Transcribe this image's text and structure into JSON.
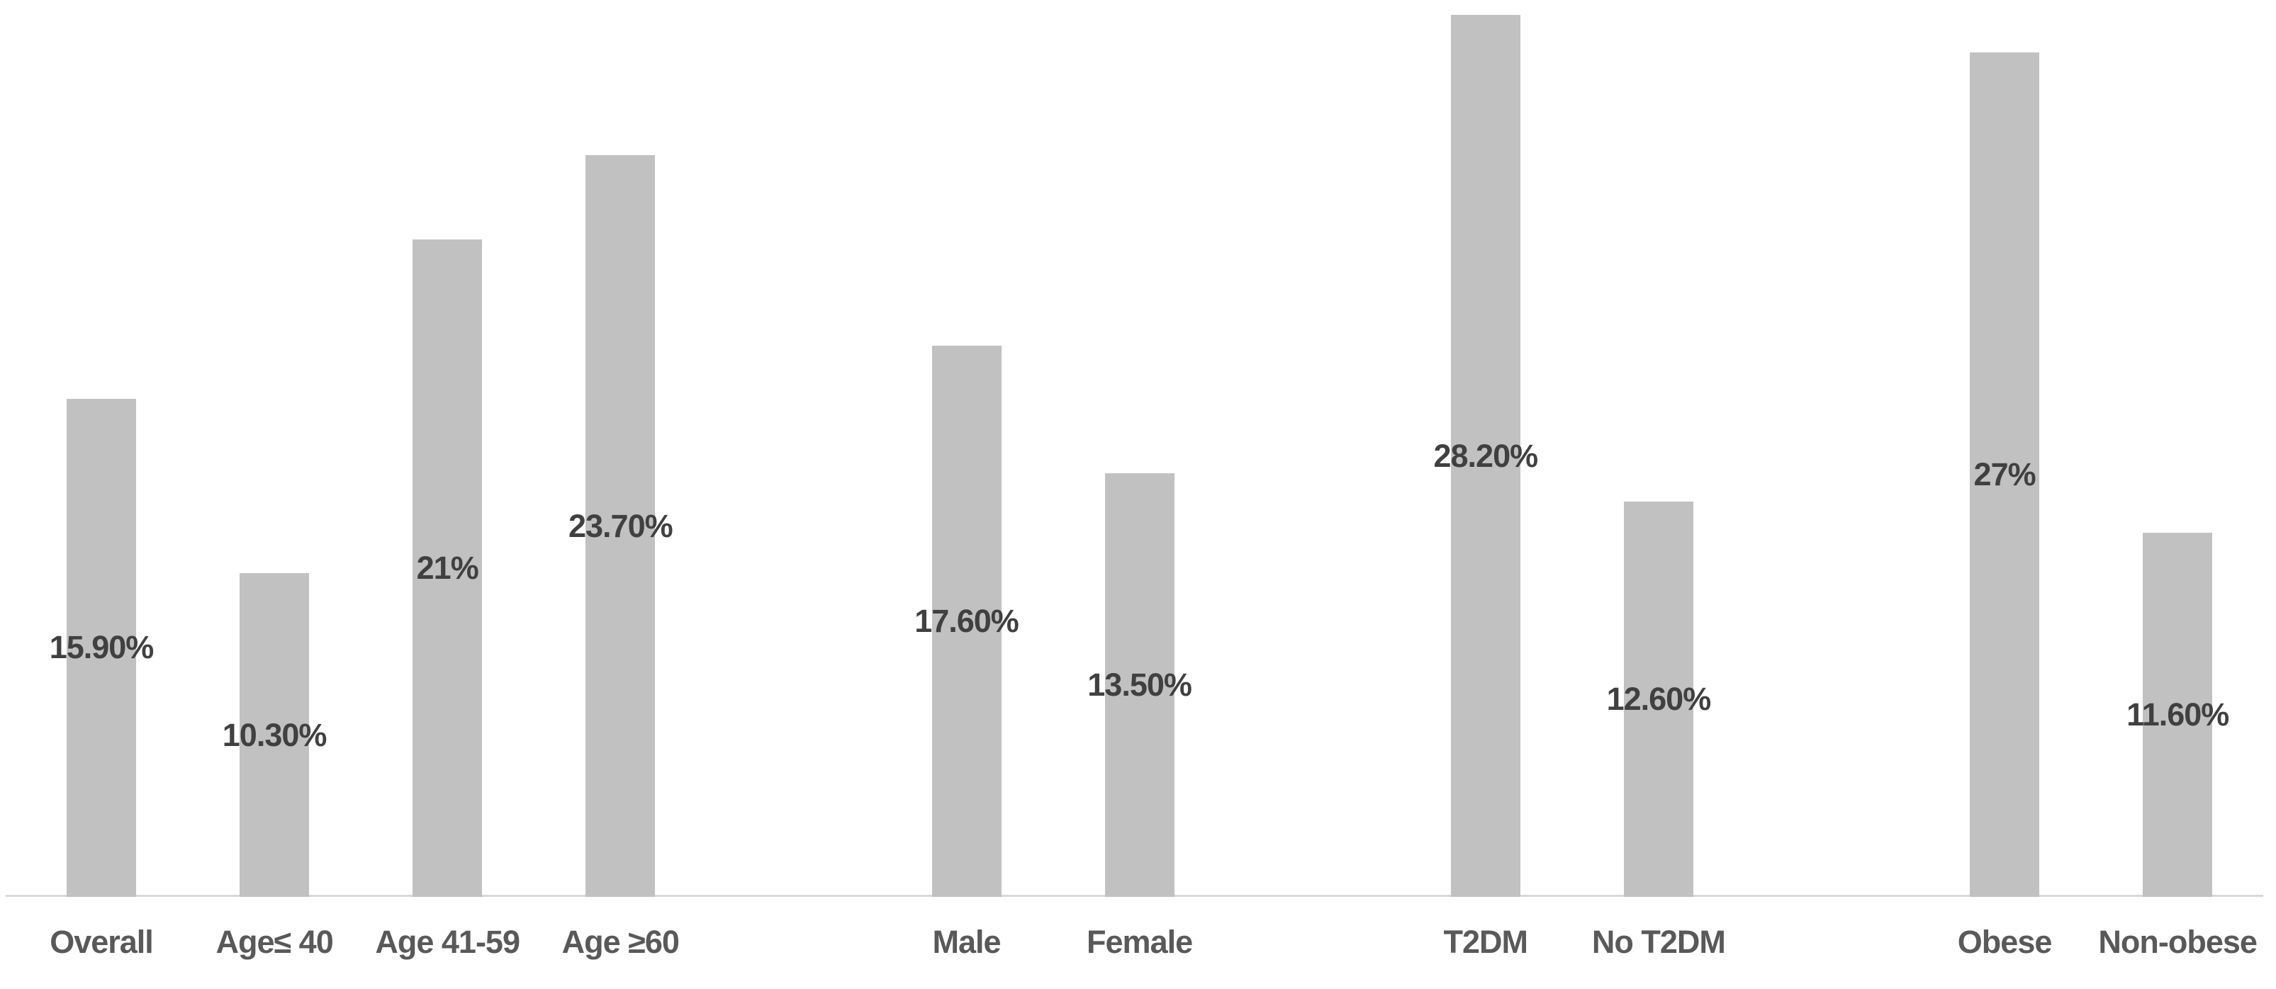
{
  "chart_data": {
    "type": "bar",
    "title": "",
    "categories": [
      "Overall",
      "Age≤ 40",
      "Age 41-59",
      "Age ≥60",
      "Male",
      "Female",
      "T2DM",
      "No T2DM",
      "Obese",
      "Non-obese"
    ],
    "values": [
      15.9,
      10.3,
      21,
      23.7,
      17.6,
      13.5,
      28.2,
      12.6,
      27,
      11.6
    ],
    "data_labels": [
      "15.90%",
      "10.30%",
      "21%",
      "23.70%",
      "17.60%",
      "13.50%",
      "28.20%",
      "12.60%",
      "27%",
      "11.60%"
    ],
    "group_index": [
      0,
      0,
      0,
      0,
      1,
      1,
      2,
      2,
      3,
      3
    ],
    "xlabel": "",
    "ylabel": "",
    "ylim": [
      0,
      28.7
    ],
    "grid": false,
    "legend": false,
    "y_axis_visible": false,
    "data_label_position": "center",
    "bar_color": "#c1c1c1",
    "axis_line_color": "#d9d9d9",
    "data_label_color": "#404040",
    "category_label_color": "#595959",
    "background_color": "#ffffff"
  }
}
